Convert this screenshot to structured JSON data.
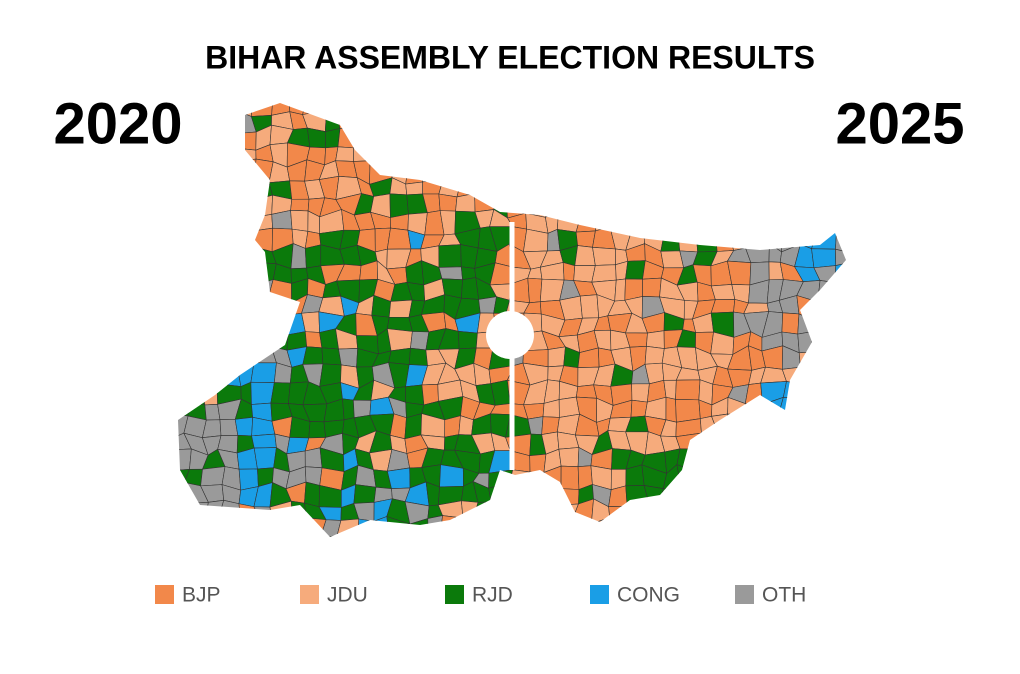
{
  "title": "BIHAR ASSEMBLY ELECTION RESULTS",
  "left_year": "2020",
  "right_year": "2025",
  "legend": [
    {
      "label": "BJP",
      "color": "#f2884a"
    },
    {
      "label": "JDU",
      "color": "#f6ab7c"
    },
    {
      "label": "RJD",
      "color": "#0b7a0b"
    },
    {
      "label": "CONG",
      "color": "#1a9ee6"
    },
    {
      "label": "OTH",
      "color": "#9a9a9a"
    }
  ]
}
